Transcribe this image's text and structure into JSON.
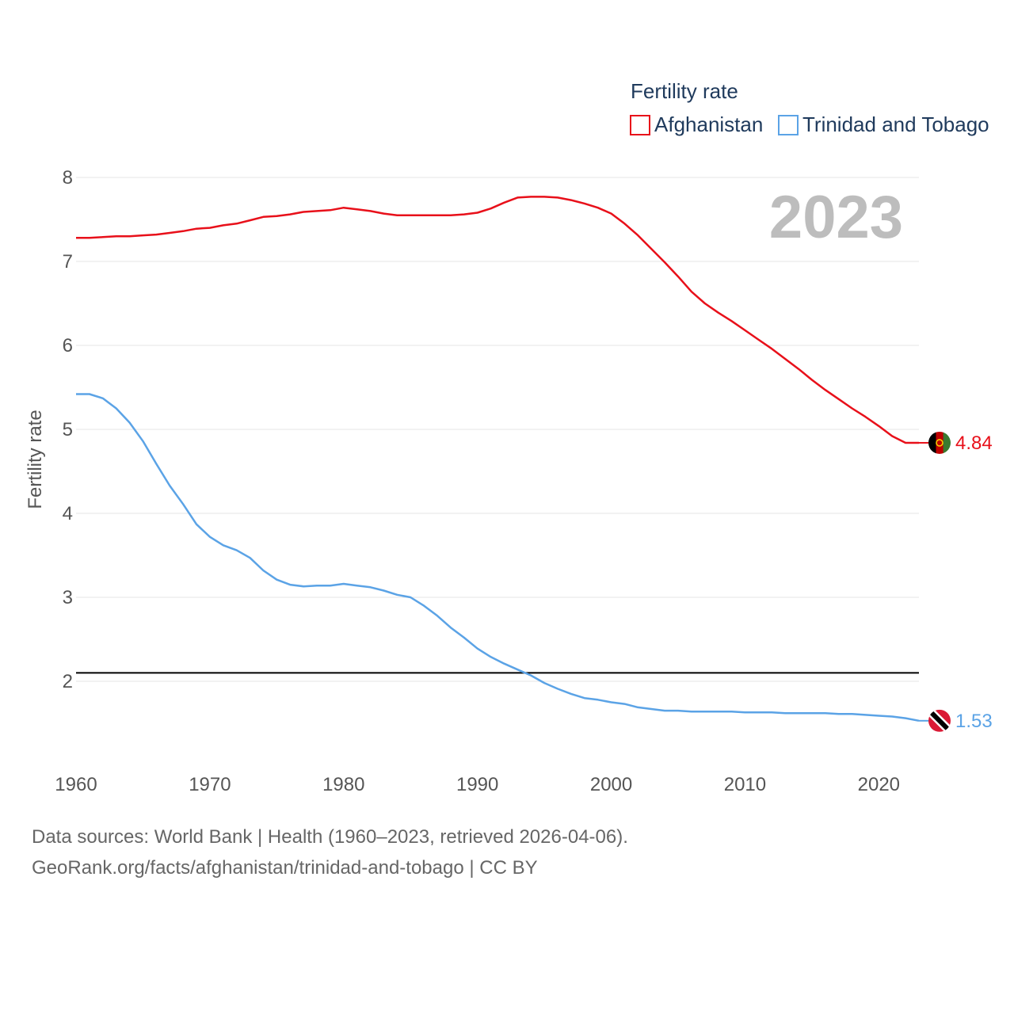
{
  "chart_data": {
    "type": "line",
    "title": "",
    "legend_title": "Fertility rate",
    "ylabel": "Fertility rate",
    "xlabel": "",
    "current_year": "2023",
    "x": [
      1960,
      1961,
      1962,
      1963,
      1964,
      1965,
      1966,
      1967,
      1968,
      1969,
      1970,
      1971,
      1972,
      1973,
      1974,
      1975,
      1976,
      1977,
      1978,
      1979,
      1980,
      1981,
      1982,
      1983,
      1984,
      1985,
      1986,
      1987,
      1988,
      1989,
      1990,
      1991,
      1992,
      1993,
      1994,
      1995,
      1996,
      1997,
      1998,
      1999,
      2000,
      2001,
      2002,
      2003,
      2004,
      2005,
      2006,
      2007,
      2008,
      2009,
      2010,
      2011,
      2012,
      2013,
      2014,
      2015,
      2016,
      2017,
      2018,
      2019,
      2020,
      2021,
      2022,
      2023
    ],
    "xlim": [
      1960,
      2023
    ],
    "xticks": [
      1960,
      1970,
      1980,
      1990,
      2000,
      2010,
      2020
    ],
    "ylim": [
      1.1,
      8.2
    ],
    "yticks": [
      2,
      3,
      4,
      5,
      6,
      7,
      8
    ],
    "reference_line": {
      "y": 2.1,
      "color": "#000000"
    },
    "series": [
      {
        "name": "Afghanistan",
        "color": "#e8101a",
        "end_label": "4.84",
        "values": [
          7.28,
          7.28,
          7.29,
          7.3,
          7.3,
          7.31,
          7.32,
          7.34,
          7.36,
          7.39,
          7.4,
          7.43,
          7.45,
          7.49,
          7.53,
          7.54,
          7.56,
          7.59,
          7.6,
          7.61,
          7.64,
          7.62,
          7.6,
          7.57,
          7.55,
          7.55,
          7.55,
          7.55,
          7.55,
          7.56,
          7.58,
          7.63,
          7.7,
          7.76,
          7.77,
          7.77,
          7.76,
          7.73,
          7.69,
          7.64,
          7.57,
          7.45,
          7.31,
          7.15,
          6.99,
          6.82,
          6.64,
          6.5,
          6.39,
          6.29,
          6.18,
          6.07,
          5.96,
          5.84,
          5.72,
          5.59,
          5.47,
          5.36,
          5.25,
          5.15,
          5.04,
          4.92,
          4.84,
          4.84
        ]
      },
      {
        "name": "Trinidad and Tobago",
        "color": "#5ba3e6",
        "end_label": "1.53",
        "values": [
          5.42,
          5.42,
          5.37,
          5.25,
          5.08,
          4.86,
          4.59,
          4.33,
          4.11,
          3.87,
          3.72,
          3.62,
          3.56,
          3.47,
          3.32,
          3.21,
          3.15,
          3.13,
          3.14,
          3.14,
          3.16,
          3.14,
          3.12,
          3.08,
          3.03,
          3.0,
          2.9,
          2.78,
          2.64,
          2.52,
          2.39,
          2.29,
          2.21,
          2.14,
          2.07,
          1.98,
          1.91,
          1.85,
          1.8,
          1.78,
          1.75,
          1.73,
          1.69,
          1.67,
          1.65,
          1.65,
          1.64,
          1.64,
          1.64,
          1.64,
          1.63,
          1.63,
          1.63,
          1.62,
          1.62,
          1.62,
          1.62,
          1.61,
          1.61,
          1.6,
          1.59,
          1.58,
          1.56,
          1.53
        ]
      }
    ]
  },
  "source": {
    "line1": "Data sources: World Bank | Health (1960–2023, retrieved 2026-04-06).",
    "line2": "GeoRank.org/facts/afghanistan/trinidad-and-tobago | CC BY"
  }
}
